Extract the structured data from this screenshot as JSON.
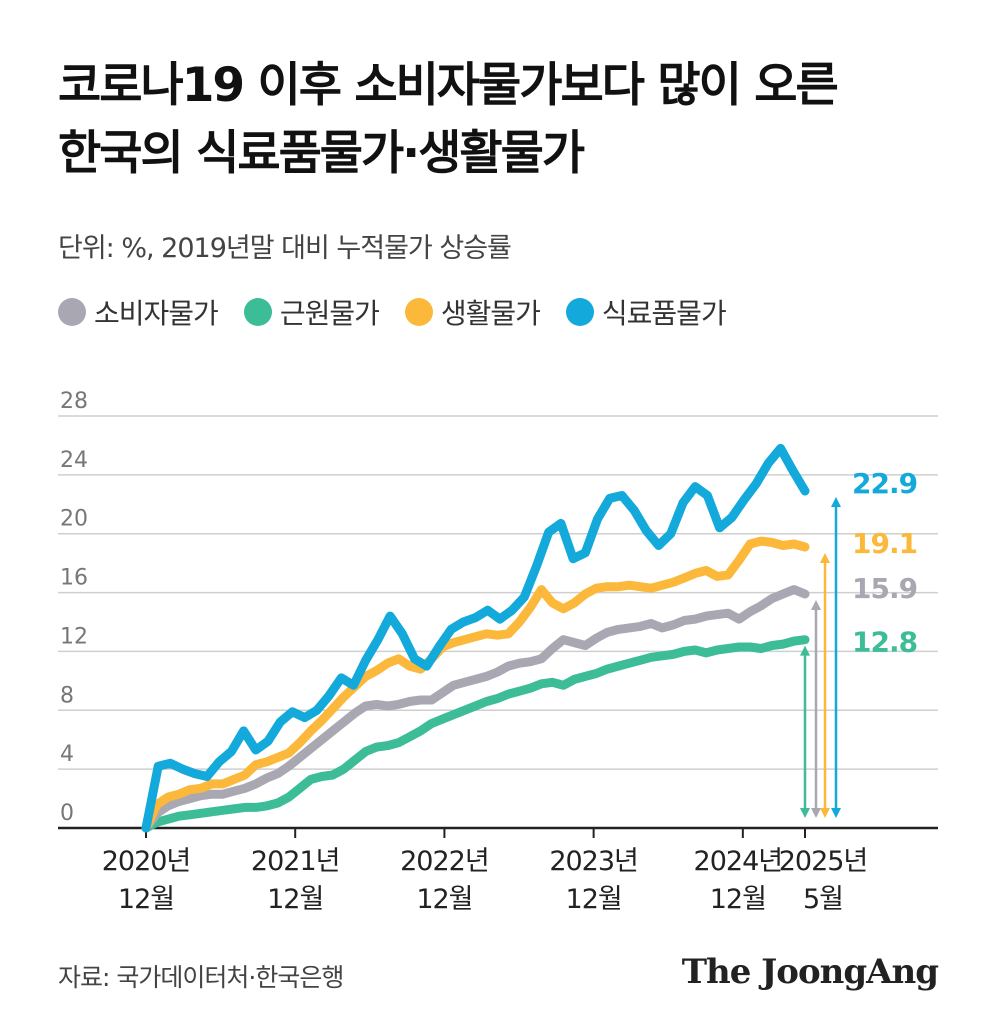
{
  "title": {
    "line1": "코로나19 이후 소비자물가보다 많이 오른",
    "line2": "한국의 식료품물가·생활물가"
  },
  "unit_text": "단위: %, 2019년말 대비 누적물가 상승률",
  "source_text": "자료: 국가데이터처·한국은행",
  "brand_text": "The JoongAng",
  "chart_data": {
    "type": "line",
    "ylim": [
      0,
      28
    ],
    "yticks": [
      "0",
      "4",
      "8",
      "12",
      "16",
      "20",
      "24",
      "28"
    ],
    "grid": true,
    "x_tick_labels": [
      {
        "year": "2020년",
        "month": "12월"
      },
      {
        "year": "2021년",
        "month": "12월"
      },
      {
        "year": "2022년",
        "month": "12월"
      },
      {
        "year": "2023년",
        "month": "12월"
      },
      {
        "year": "2024년",
        "month": "12월"
      },
      {
        "year": "2025년",
        "month": "5월"
      }
    ],
    "x_start": "2020-12",
    "x_end": "2025-05",
    "series": [
      {
        "name": "소비자물가",
        "color": "#a9a8b2",
        "end_label": "15.9",
        "values": [
          0,
          1.0,
          1.5,
          1.8,
          2.0,
          2.2,
          2.3,
          2.3,
          2.5,
          2.7,
          3.0,
          3.4,
          3.7,
          4.2,
          4.8,
          5.4,
          6.0,
          6.6,
          7.2,
          7.8,
          8.3,
          8.4,
          8.3,
          8.4,
          8.6,
          8.7,
          8.7,
          9.2,
          9.7,
          9.9,
          10.1,
          10.3,
          10.6,
          11.0,
          11.2,
          11.3,
          11.5,
          12.2,
          12.8,
          12.6,
          12.4,
          12.9,
          13.3,
          13.5,
          13.6,
          13.7,
          13.9,
          13.6,
          13.8,
          14.1,
          14.2,
          14.4,
          14.5,
          14.6,
          14.2,
          14.7,
          15.1,
          15.6,
          15.9,
          16.2,
          15.9
        ]
      },
      {
        "name": "근원물가",
        "color": "#3dbc98",
        "end_label": "12.8",
        "values": [
          0,
          0.4,
          0.6,
          0.8,
          0.9,
          1.0,
          1.1,
          1.2,
          1.3,
          1.4,
          1.4,
          1.5,
          1.7,
          2.1,
          2.7,
          3.3,
          3.5,
          3.6,
          4.0,
          4.6,
          5.2,
          5.5,
          5.6,
          5.8,
          6.2,
          6.6,
          7.1,
          7.4,
          7.7,
          8.0,
          8.3,
          8.6,
          8.8,
          9.1,
          9.3,
          9.5,
          9.8,
          9.9,
          9.7,
          10.1,
          10.3,
          10.5,
          10.8,
          11.0,
          11.2,
          11.4,
          11.6,
          11.7,
          11.8,
          12.0,
          12.1,
          11.9,
          12.1,
          12.2,
          12.3,
          12.3,
          12.2,
          12.4,
          12.5,
          12.7,
          12.8
        ]
      },
      {
        "name": "생활물가",
        "color": "#fbb83b",
        "end_label": "19.1",
        "values": [
          0,
          1.6,
          2.1,
          2.3,
          2.6,
          2.7,
          3.0,
          3.0,
          3.3,
          3.6,
          4.3,
          4.5,
          4.8,
          5.1,
          5.8,
          6.6,
          7.3,
          8.1,
          8.9,
          9.6,
          10.3,
          10.7,
          11.2,
          11.5,
          11.0,
          10.8,
          11.5,
          12.3,
          12.6,
          12.8,
          13.0,
          13.2,
          13.1,
          13.2,
          14.0,
          15.0,
          16.2,
          15.3,
          14.9,
          15.3,
          15.9,
          16.3,
          16.4,
          16.4,
          16.5,
          16.4,
          16.3,
          16.5,
          16.7,
          17.0,
          17.3,
          17.5,
          17.1,
          17.2,
          18.2,
          19.3,
          19.5,
          19.4,
          19.2,
          19.3,
          19.1
        ]
      },
      {
        "name": "식료품물가",
        "color": "#13a9db",
        "end_label": "22.9",
        "values": [
          0,
          4.2,
          4.4,
          4.0,
          3.7,
          3.5,
          4.5,
          5.2,
          6.6,
          5.3,
          5.9,
          7.2,
          7.9,
          7.5,
          8.0,
          9.0,
          10.2,
          9.7,
          11.4,
          12.8,
          14.4,
          13.2,
          11.5,
          11.0,
          12.3,
          13.5,
          14.0,
          14.3,
          14.8,
          14.2,
          14.8,
          15.7,
          17.8,
          20.1,
          20.7,
          18.3,
          18.7,
          21.0,
          22.4,
          22.6,
          21.6,
          20.2,
          19.2,
          20.0,
          22.1,
          23.2,
          22.6,
          20.4,
          21.1,
          22.3,
          23.4,
          24.8,
          25.8,
          24.3,
          22.9
        ]
      }
    ]
  }
}
